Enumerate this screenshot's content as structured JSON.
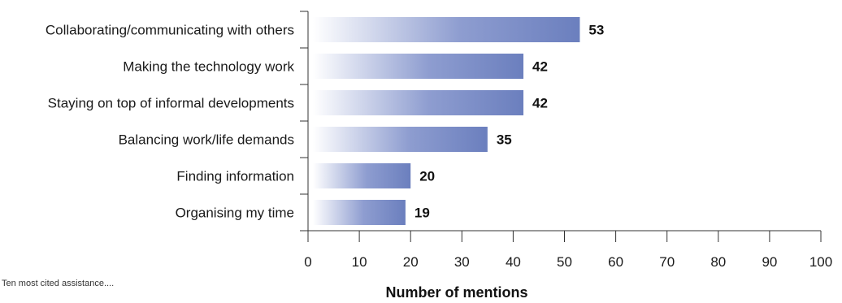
{
  "chart_data": {
    "type": "bar",
    "orientation": "horizontal",
    "categories": [
      "Collaborating/communicating with others",
      "Making the technology work",
      "Staying on top of informal developments",
      "Balancing work/life demands",
      "Finding information",
      "Organising my time"
    ],
    "values": [
      53,
      42,
      42,
      35,
      20,
      19
    ],
    "data_labels": [
      "53",
      "42",
      "42",
      "35",
      "20",
      "19"
    ],
    "xlabel": "Number of mentions",
    "xlim": [
      0,
      100
    ],
    "xticks": [
      "0",
      "10",
      "20",
      "30",
      "40",
      "50",
      "60",
      "70",
      "80",
      "90",
      "100"
    ],
    "grid": false,
    "bar_color": "#6b7fbe",
    "bar_gradient_start": "#ffffff"
  },
  "footnote": "Ten most cited assistance...."
}
